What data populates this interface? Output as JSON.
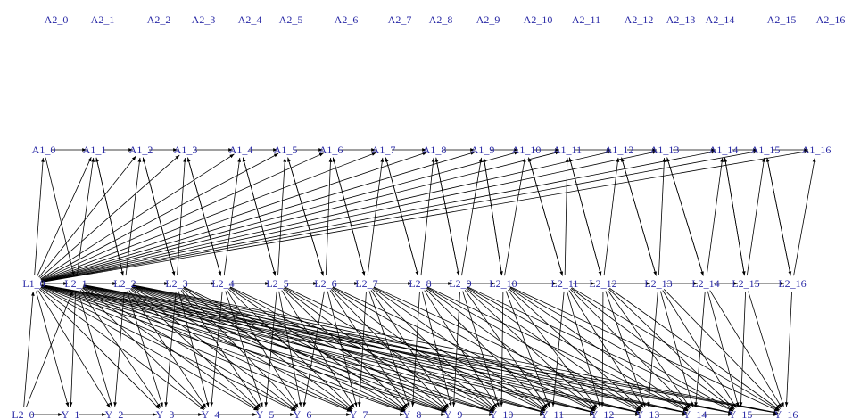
{
  "graph": {
    "label_color": "#2a2aa6",
    "edge_color": "#000000",
    "rows": {
      "A2": [
        "A2_0",
        "A2_1",
        "A2_2",
        "A2_3",
        "A2_4",
        "A2_5",
        "A2_6",
        "A2_7",
        "A2_8",
        "A2_9",
        "A2_10",
        "A2_11",
        "A2_12",
        "A2_13",
        "A2_14",
        "A2_15",
        "A2_16"
      ],
      "A1": [
        "A1_0",
        "A1_1",
        "A1_2",
        "A1_3",
        "A1_4",
        "A1_5",
        "A1_6",
        "A1_7",
        "A1_8",
        "A1_9",
        "A1_10",
        "A1_11",
        "A1_12",
        "A1_13",
        "A1_14",
        "A1_15",
        "A1_16"
      ],
      "L2": [
        "L1_0",
        "L2_1",
        "L2_2",
        "L2_3",
        "L2_4",
        "L2_5",
        "L2_6",
        "L2_7",
        "L2_8",
        "L2_9",
        "L2_10",
        "L2_11",
        "L2_12",
        "L2_13",
        "L2_14",
        "L2_15",
        "L2_16"
      ],
      "Y": [
        "L2_0",
        "Y_1",
        "Y_2",
        "Y_3",
        "Y_4",
        "Y_5",
        "Y_6",
        "Y_7",
        "Y_8",
        "Y_9",
        "Y_10",
        "Y_11",
        "Y_12",
        "Y_13",
        "Y_14",
        "Y_15",
        "Y_16"
      ]
    }
  }
}
